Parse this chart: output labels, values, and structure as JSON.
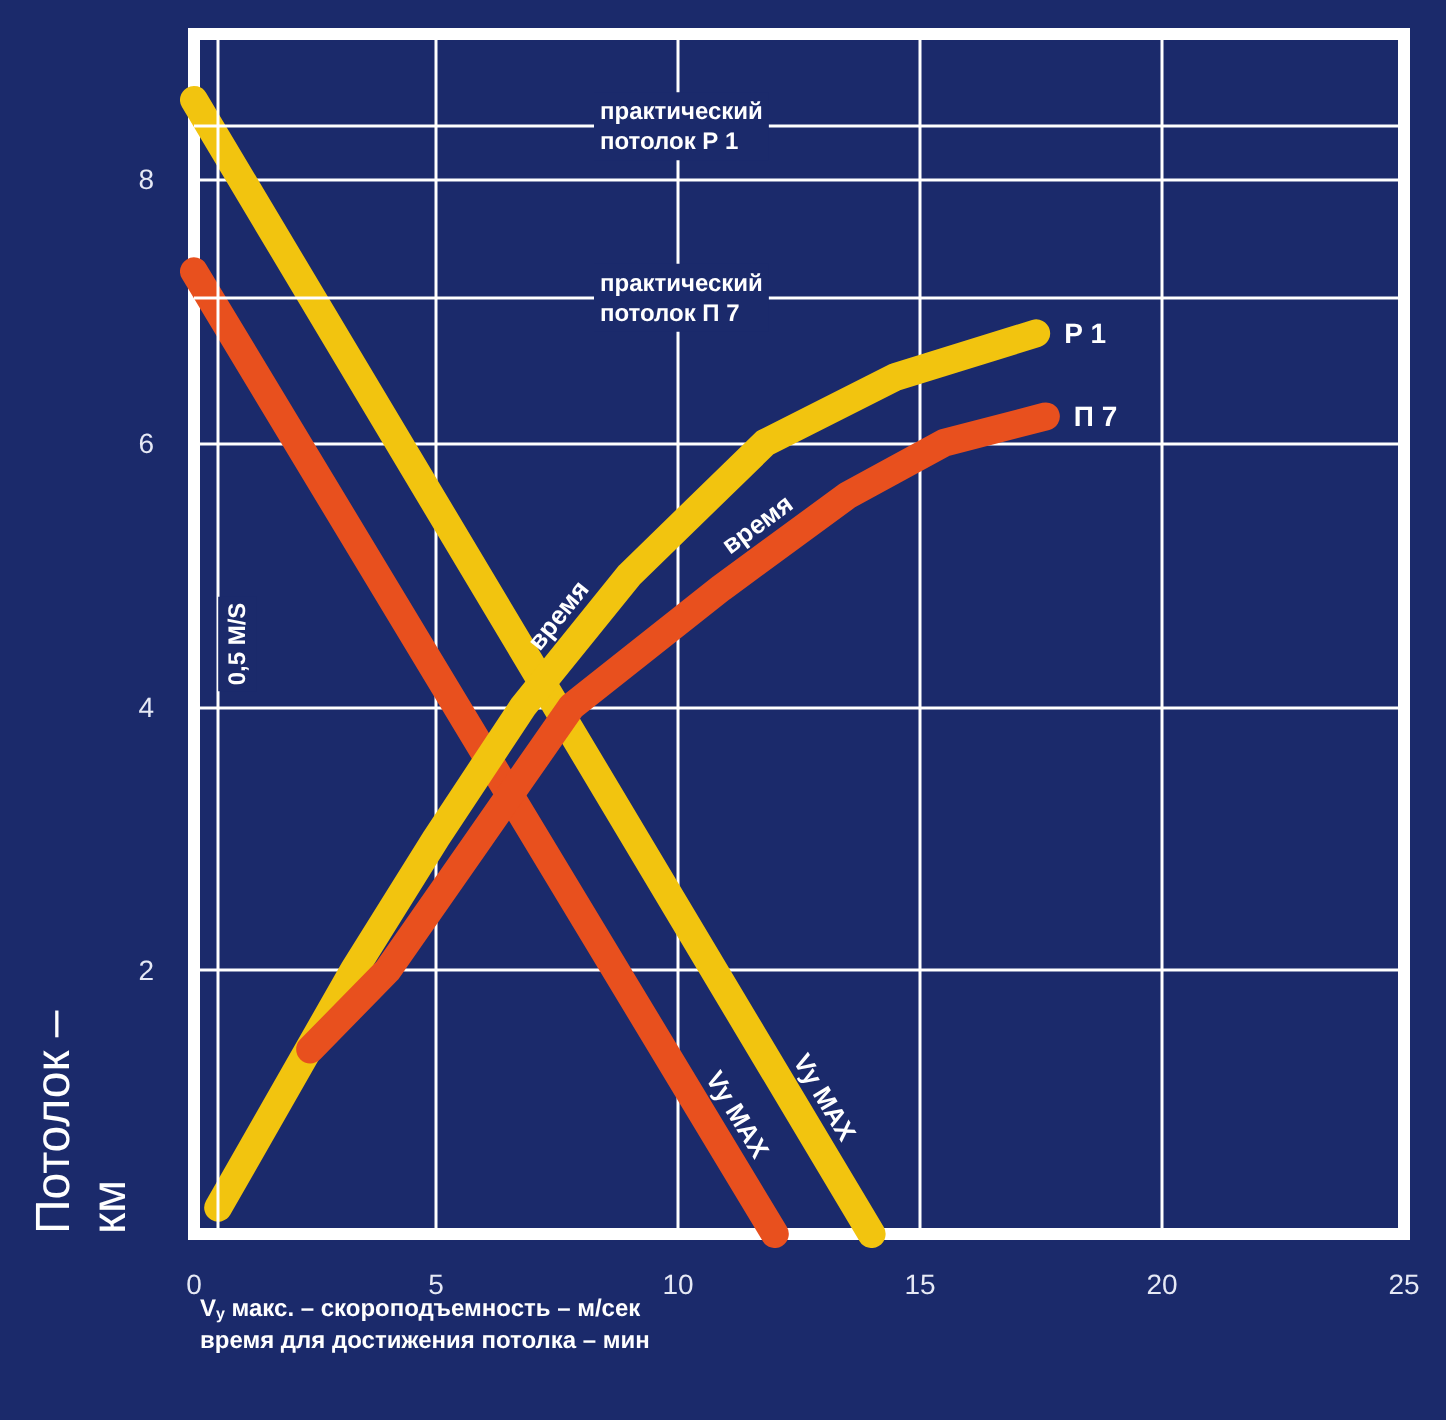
{
  "chart_data": {
    "type": "line",
    "xlabel": "V$_{y}$ макс. – скороподъемность – м/сек\nвремя для достижения потолка – мин",
    "ylabel": "Потолок –\nкм",
    "xlim": [
      0,
      25
    ],
    "xticks": [
      0,
      5,
      10,
      15,
      20,
      25
    ],
    "ylim": [
      0,
      9.1
    ],
    "yticks": [
      {
        "value": 0,
        "label": null
      },
      2,
      4,
      6,
      8
    ],
    "grid": true,
    "legend": false,
    "line_style": "solid",
    "series": [
      {
        "color": "#f2c40f",
        "x": [
          0,
          14
        ],
        "values": [
          8.6,
          0
        ]
      },
      {
        "color": "#e8501e",
        "x": [
          0,
          12
        ],
        "values": [
          7.3,
          0
        ]
      },
      {
        "name": "Р 1",
        "color": "#f2c40f",
        "x": [
          0.5,
          3.3,
          5,
          6.8,
          9,
          11.8,
          14.5,
          17.4
        ],
        "values": [
          0.2,
          2,
          3,
          4,
          5,
          6,
          6.5,
          6.83
        ]
      },
      {
        "name": "П 7",
        "color": "#e8501e",
        "x": [
          2.4,
          4,
          5.9,
          7.8,
          10.9,
          13.5,
          15.5,
          17.6
        ],
        "values": [
          1.4,
          2,
          3,
          4,
          4.9,
          5.6,
          6,
          6.2
        ]
      }
    ],
    "ref_lines": [
      {
        "axis": "y",
        "value": 8.4,
        "label": "практический\nпотолок Р 1"
      },
      {
        "axis": "y",
        "value": 7.1,
        "label": "практический\nпотолок П 7"
      },
      {
        "axis": "x",
        "value": 0.5,
        "label": "0,5 M/S"
      }
    ],
    "annotations": [
      {
        "text": "время",
        "x": 8,
        "y": 4.55
      },
      {
        "text": "время",
        "x": 12,
        "y": 5.2
      },
      {
        "text": "Vy MAX",
        "x": 12.5,
        "y": 0.92
      },
      {
        "text": "Vy MAX",
        "x": 10.7,
        "y": 0.79
      }
    ]
  }
}
